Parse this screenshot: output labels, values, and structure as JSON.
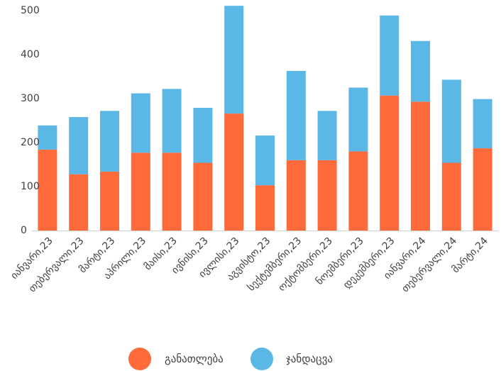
{
  "chart_data": {
    "type": "bar",
    "stacked": true,
    "title": "",
    "xlabel": "",
    "ylabel": "",
    "ylim": [
      0,
      500
    ],
    "yticks": [
      0,
      100,
      200,
      300,
      400,
      500
    ],
    "grid": false,
    "legend_position": "bottom",
    "categories": [
      "იანვარი,23",
      "თებერვალი,23",
      "მარტი,23",
      "აპრილი,23",
      "მაისი,23",
      "ივნისი,23",
      "ივლისი,23",
      "აგვისტო,23",
      "სექტემბერი,23",
      "ოქტომბერი,23",
      "ნოემბერი,23",
      "დეკემბერი,23",
      "იანვარი,24",
      "თებერვალი,24",
      "მარტი,24"
    ],
    "series": [
      {
        "name": "განათლება",
        "color": "#FF6A3A",
        "values": [
          184,
          128,
          134,
          177,
          177,
          154,
          266,
          103,
          160,
          160,
          180,
          307,
          293,
          154,
          187
        ]
      },
      {
        "name": "ჯანდაცვა",
        "color": "#5BB8E6",
        "values": [
          55,
          130,
          138,
          135,
          145,
          125,
          245,
          113,
          203,
          112,
          145,
          182,
          138,
          189,
          112
        ]
      }
    ]
  }
}
